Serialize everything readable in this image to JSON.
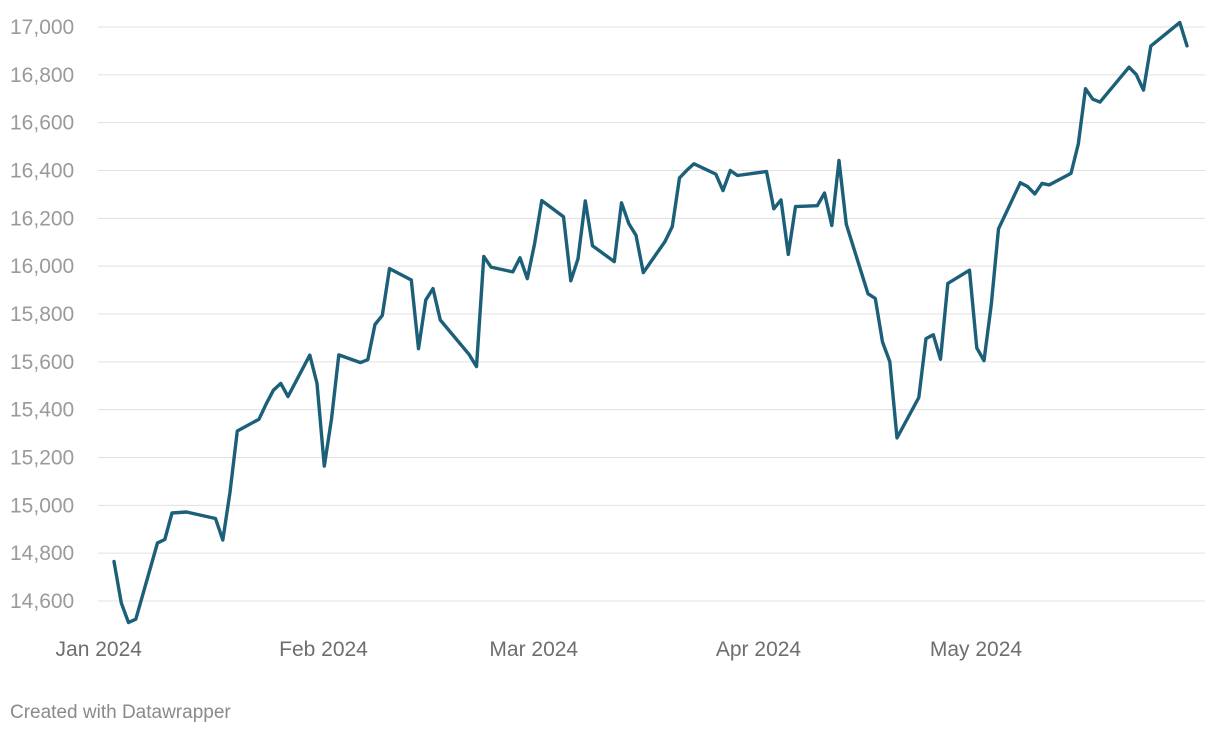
{
  "chart_data": {
    "type": "line",
    "title": "",
    "xlabel": "",
    "ylabel": "",
    "ylim": [
      14500,
      17000
    ],
    "y_ticks": [
      14600,
      14800,
      15000,
      15200,
      15400,
      15600,
      15800,
      16000,
      16200,
      16400,
      16600,
      16800,
      17000
    ],
    "x_ticks": [
      {
        "date": "2024-01-01",
        "label": "Jan 2024"
      },
      {
        "date": "2024-02-01",
        "label": "Feb 2024"
      },
      {
        "date": "2024-03-01",
        "label": "Mar 2024"
      },
      {
        "date": "2024-04-01",
        "label": "Apr 2024"
      },
      {
        "date": "2024-05-01",
        "label": "May 2024"
      }
    ],
    "grid": true,
    "line_color": "#1b5f79",
    "series": [
      {
        "values": [
          [
            "2024-01-02",
            14765
          ],
          [
            "2024-01-03",
            14592
          ],
          [
            "2024-01-04",
            14510
          ],
          [
            "2024-01-05",
            14524
          ],
          [
            "2024-01-08",
            14843
          ],
          [
            "2024-01-09",
            14857
          ],
          [
            "2024-01-10",
            14968
          ],
          [
            "2024-01-12",
            14972
          ],
          [
            "2024-01-16",
            14945
          ],
          [
            "2024-01-17",
            14855
          ],
          [
            "2024-01-18",
            15055
          ],
          [
            "2024-01-19",
            15311
          ],
          [
            "2024-01-22",
            15360
          ],
          [
            "2024-01-23",
            15425
          ],
          [
            "2024-01-24",
            15482
          ],
          [
            "2024-01-25",
            15510
          ],
          [
            "2024-01-26",
            15455
          ],
          [
            "2024-01-29",
            15628
          ],
          [
            "2024-01-30",
            15510
          ],
          [
            "2024-01-31",
            15164
          ],
          [
            "2024-02-01",
            15361
          ],
          [
            "2024-02-02",
            15629
          ],
          [
            "2024-02-05",
            15597
          ],
          [
            "2024-02-06",
            15609
          ],
          [
            "2024-02-07",
            15756
          ],
          [
            "2024-02-08",
            15794
          ],
          [
            "2024-02-09",
            15990
          ],
          [
            "2024-02-12",
            15942
          ],
          [
            "2024-02-13",
            15655
          ],
          [
            "2024-02-14",
            15859
          ],
          [
            "2024-02-15",
            15906
          ],
          [
            "2024-02-16",
            15775
          ],
          [
            "2024-02-20",
            15630
          ],
          [
            "2024-02-21",
            15580
          ],
          [
            "2024-02-22",
            16041
          ],
          [
            "2024-02-23",
            15996
          ],
          [
            "2024-02-26",
            15976
          ],
          [
            "2024-02-27",
            16035
          ],
          [
            "2024-02-28",
            15948
          ],
          [
            "2024-02-29",
            16092
          ],
          [
            "2024-03-01",
            16274
          ],
          [
            "2024-03-04",
            16207
          ],
          [
            "2024-03-05",
            15939
          ],
          [
            "2024-03-06",
            16031
          ],
          [
            "2024-03-07",
            16273
          ],
          [
            "2024-03-08",
            16085
          ],
          [
            "2024-03-11",
            16019
          ],
          [
            "2024-03-12",
            16265
          ],
          [
            "2024-03-13",
            16178
          ],
          [
            "2024-03-14",
            16129
          ],
          [
            "2024-03-15",
            15973
          ],
          [
            "2024-03-18",
            16103
          ],
          [
            "2024-03-19",
            16166
          ],
          [
            "2024-03-20",
            16369
          ],
          [
            "2024-03-21",
            16401
          ],
          [
            "2024-03-22",
            16428
          ],
          [
            "2024-03-25",
            16385
          ],
          [
            "2024-03-26",
            16316
          ],
          [
            "2024-03-27",
            16400
          ],
          [
            "2024-03-28",
            16379
          ],
          [
            "2024-04-01",
            16396
          ],
          [
            "2024-04-02",
            16240
          ],
          [
            "2024-04-03",
            16277
          ],
          [
            "2024-04-04",
            16049
          ],
          [
            "2024-04-05",
            16249
          ],
          [
            "2024-04-08",
            16253
          ],
          [
            "2024-04-09",
            16306
          ],
          [
            "2024-04-10",
            16170
          ],
          [
            "2024-04-11",
            16442
          ],
          [
            "2024-04-12",
            16175
          ],
          [
            "2024-04-15",
            15885
          ],
          [
            "2024-04-16",
            15865
          ],
          [
            "2024-04-17",
            15683
          ],
          [
            "2024-04-18",
            15601
          ],
          [
            "2024-04-19",
            15282
          ],
          [
            "2024-04-22",
            15451
          ],
          [
            "2024-04-23",
            15697
          ],
          [
            "2024-04-24",
            15713
          ],
          [
            "2024-04-25",
            15611
          ],
          [
            "2024-04-26",
            15928
          ],
          [
            "2024-04-29",
            15983
          ],
          [
            "2024-04-30",
            15658
          ],
          [
            "2024-05-01",
            15605
          ],
          [
            "2024-05-02",
            15840
          ],
          [
            "2024-05-03",
            16156
          ],
          [
            "2024-05-06",
            16349
          ],
          [
            "2024-05-07",
            16333
          ],
          [
            "2024-05-08",
            16302
          ],
          [
            "2024-05-09",
            16346
          ],
          [
            "2024-05-10",
            16340
          ],
          [
            "2024-05-13",
            16388
          ],
          [
            "2024-05-14",
            16511
          ],
          [
            "2024-05-15",
            16742
          ],
          [
            "2024-05-16",
            16698
          ],
          [
            "2024-05-17",
            16686
          ],
          [
            "2024-05-21",
            16832
          ],
          [
            "2024-05-22",
            16801
          ],
          [
            "2024-05-23",
            16736
          ],
          [
            "2024-05-24",
            16920
          ],
          [
            "2024-05-28",
            17019
          ],
          [
            "2024-05-29",
            16921
          ]
        ]
      }
    ]
  },
  "footer": {
    "credit": "Created with Datawrapper"
  }
}
